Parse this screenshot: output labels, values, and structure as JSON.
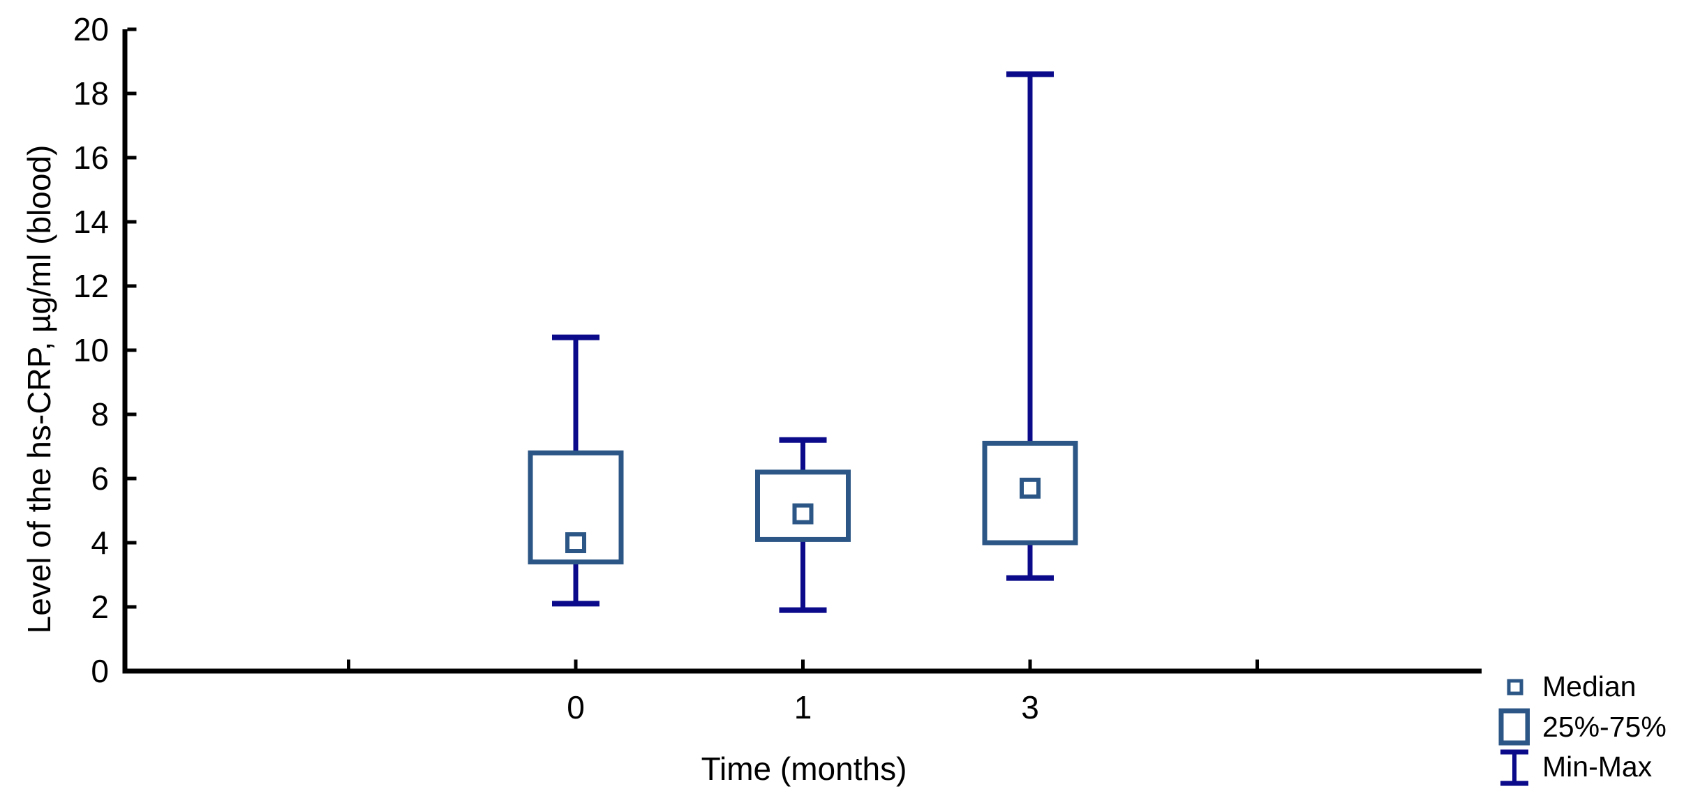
{
  "chart_data": {
    "type": "box",
    "title": "",
    "xlabel": "Time (months)",
    "ylabel": "Level of the hs-CRP, µg/ml (blood)",
    "categories": [
      "0",
      "1",
      "3"
    ],
    "y_axis": {
      "min": 0,
      "max": 20,
      "tick_step": 2,
      "tick_labels": [
        "0",
        "2",
        "4",
        "6",
        "8",
        "10",
        "12",
        "14",
        "16",
        "18",
        "20"
      ]
    },
    "x_axis": {
      "labeled_tick_count": 3,
      "unlabeled_edge_ticks": 2,
      "grid": false
    },
    "series": [
      {
        "category": "0",
        "min": 2.1,
        "q1": 3.4,
        "median": 4.0,
        "q3": 6.8,
        "max": 10.4
      },
      {
        "category": "1",
        "min": 1.9,
        "q1": 4.1,
        "median": 4.9,
        "q3": 6.2,
        "max": 7.2
      },
      {
        "category": "3",
        "min": 2.9,
        "q1": 4.0,
        "median": 5.7,
        "q3": 7.1,
        "max": 18.6
      }
    ],
    "legend": [
      {
        "label": "Median",
        "marker": "median-square"
      },
      {
        "label": "25%-75%",
        "marker": "box"
      },
      {
        "label": "Min-Max",
        "marker": "whisker"
      }
    ],
    "colors": {
      "axis": "#000000",
      "text": "#000000",
      "box_outline": "#2b5685",
      "median_outline": "#2b5685",
      "whisker": "#0a0a8a",
      "background": "#ffffff"
    },
    "layout_hints": {
      "legend_position": "bottom-right",
      "grid": false,
      "box_fill": "white"
    }
  }
}
